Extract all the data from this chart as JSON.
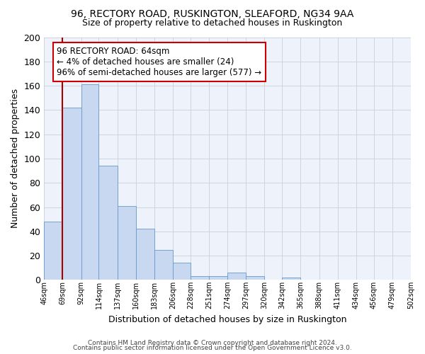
{
  "title1": "96, RECTORY ROAD, RUSKINGTON, SLEAFORD, NG34 9AA",
  "title2": "Size of property relative to detached houses in Ruskington",
  "xlabel": "Distribution of detached houses by size in Ruskington",
  "ylabel": "Number of detached properties",
  "bar_color": "#c8d8f0",
  "bar_edge_color": "#6699cc",
  "grid_color": "#c8d0dc",
  "property_line_color": "#aa0000",
  "annotation_title": "96 RECTORY ROAD: 64sqm",
  "annotation_line1": "← 4% of detached houses are smaller (24)",
  "annotation_line2": "96% of semi-detached houses are larger (577) →",
  "annotation_box_color": "#ffffff",
  "annotation_box_edge": "#cc0000",
  "bin_edges": [
    46,
    69,
    92,
    114,
    137,
    160,
    183,
    206,
    228,
    251,
    274,
    297,
    320,
    342,
    365,
    388,
    411,
    434,
    456,
    479,
    502
  ],
  "bin_labels": [
    "46sqm",
    "69sqm",
    "92sqm",
    "114sqm",
    "137sqm",
    "160sqm",
    "183sqm",
    "206sqm",
    "228sqm",
    "251sqm",
    "274sqm",
    "297sqm",
    "320sqm",
    "342sqm",
    "365sqm",
    "388sqm",
    "411sqm",
    "434sqm",
    "456sqm",
    "479sqm",
    "502sqm"
  ],
  "bar_heights": [
    48,
    142,
    161,
    94,
    61,
    42,
    25,
    14,
    3,
    3,
    6,
    3,
    0,
    2,
    0,
    0,
    0,
    0,
    0,
    0
  ],
  "ylim": [
    0,
    200
  ],
  "yticks": [
    0,
    20,
    40,
    60,
    80,
    100,
    120,
    140,
    160,
    180,
    200
  ],
  "footer1": "Contains HM Land Registry data © Crown copyright and database right 2024.",
  "footer2": "Contains public sector information licensed under the Open Government Licence v3.0.",
  "bg_color": "#eef0f8",
  "plot_bg_color": "#eef2fb"
}
